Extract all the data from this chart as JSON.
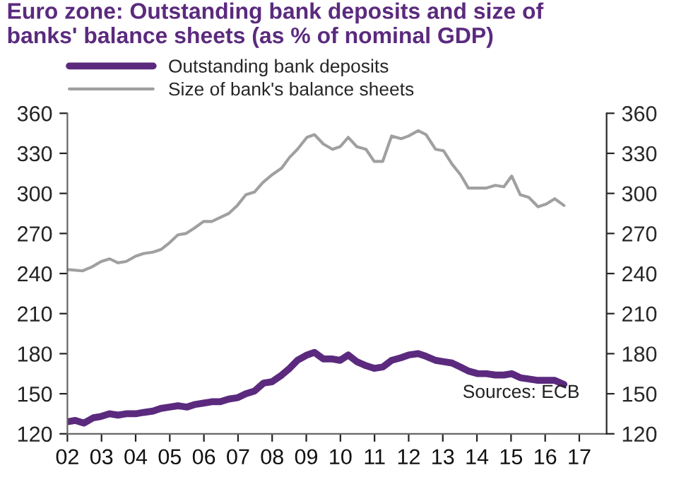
{
  "chart_data": {
    "type": "line",
    "title": "Euro zone: Outstanding bank deposits and size of\nbanks' balance sheets (as % of nominal GDP)",
    "annotations": [
      "Sources: ECB"
    ],
    "series": [
      {
        "name": "Outstanding bank deposits",
        "color": "#5b2a7e",
        "x": [
          2002.0,
          2002.23,
          2002.48,
          2002.76,
          2002.99,
          2003.24,
          2003.48,
          2003.72,
          2004.0,
          2004.23,
          2004.51,
          2004.74,
          2004.99,
          2005.24,
          2005.5,
          2005.75,
          2005.99,
          2006.23,
          2006.48,
          2006.73,
          2006.98,
          2007.23,
          2007.48,
          2007.75,
          2008.0,
          2008.28,
          2008.51,
          2008.74,
          2009.02,
          2009.24,
          2009.5,
          2009.77,
          2009.99,
          2010.23,
          2010.48,
          2010.75,
          2010.99,
          2011.24,
          2011.5,
          2011.78,
          2012.0,
          2012.28,
          2012.51,
          2012.79,
          2013.02,
          2013.27,
          2013.52,
          2013.75,
          2014.03,
          2014.28,
          2014.54,
          2014.79,
          2015.02,
          2015.27,
          2015.52,
          2015.79,
          2016.03,
          2016.28,
          2016.55
        ],
        "values": [
          129,
          130,
          128,
          132,
          133,
          135,
          134,
          135,
          135,
          136,
          137,
          139,
          140,
          141,
          140,
          142,
          143,
          144,
          144,
          146,
          147,
          150,
          152,
          158,
          159,
          164,
          169,
          175,
          179,
          181,
          176,
          176,
          175,
          179,
          174,
          171,
          169,
          170,
          175,
          177,
          179,
          180,
          178,
          175,
          174,
          173,
          170,
          167,
          165,
          165,
          164,
          164,
          165,
          162,
          161,
          160,
          160,
          160,
          157
        ]
      },
      {
        "name": "Size of bank's balance sheets",
        "color": "#a0a0a0",
        "x": [
          2002.0,
          2002.44,
          2002.72,
          2002.99,
          2003.24,
          2003.48,
          2003.72,
          2004.0,
          2004.23,
          2004.51,
          2004.74,
          2004.99,
          2005.24,
          2005.48,
          2005.72,
          2005.99,
          2006.23,
          2006.48,
          2006.73,
          2006.98,
          2007.23,
          2007.48,
          2007.72,
          2008.0,
          2008.28,
          2008.51,
          2008.74,
          2009.02,
          2009.24,
          2009.5,
          2009.77,
          2009.99,
          2010.23,
          2010.48,
          2010.75,
          2010.99,
          2011.24,
          2011.5,
          2011.78,
          2012.0,
          2012.28,
          2012.51,
          2012.79,
          2013.02,
          2013.27,
          2013.52,
          2013.75,
          2014.03,
          2014.28,
          2014.54,
          2014.79,
          2015.02,
          2015.27,
          2015.52,
          2015.79,
          2016.03,
          2016.28,
          2016.55
        ],
        "values": [
          243,
          242,
          245,
          249,
          251,
          248,
          249,
          253,
          255,
          256,
          258,
          263,
          269,
          270,
          274,
          279,
          279,
          282,
          285,
          291,
          299,
          301,
          308,
          314,
          319,
          327,
          333,
          342,
          344,
          337,
          333,
          335,
          342,
          335,
          333,
          324,
          324,
          343,
          341,
          343,
          347,
          344,
          333,
          332,
          322,
          314,
          304,
          304,
          304,
          306,
          305,
          313,
          299,
          297,
          290,
          292,
          296,
          291
        ]
      }
    ],
    "xlim": [
      2002,
      2017.8
    ],
    "xticks": [
      {
        "value": 2002,
        "label": "02"
      },
      {
        "value": 2003,
        "label": "03"
      },
      {
        "value": 2004,
        "label": "04"
      },
      {
        "value": 2005,
        "label": "05"
      },
      {
        "value": 2006,
        "label": "06"
      },
      {
        "value": 2007,
        "label": "07"
      },
      {
        "value": 2008,
        "label": "08"
      },
      {
        "value": 2009,
        "label": "09"
      },
      {
        "value": 2010,
        "label": "10"
      },
      {
        "value": 2011,
        "label": "11"
      },
      {
        "value": 2012,
        "label": "12"
      },
      {
        "value": 2013,
        "label": "13"
      },
      {
        "value": 2014,
        "label": "14"
      },
      {
        "value": 2015,
        "label": "15"
      },
      {
        "value": 2016,
        "label": "16"
      },
      {
        "value": 2017,
        "label": "17"
      }
    ],
    "ylim": [
      120,
      360
    ],
    "yticks": [
      120,
      150,
      180,
      210,
      240,
      270,
      300,
      330,
      360
    ],
    "y2lim": [
      120,
      360
    ],
    "y2ticks": [
      120,
      150,
      180,
      210,
      240,
      270,
      300,
      330,
      360
    ],
    "grid": false,
    "legend": "top left"
  }
}
